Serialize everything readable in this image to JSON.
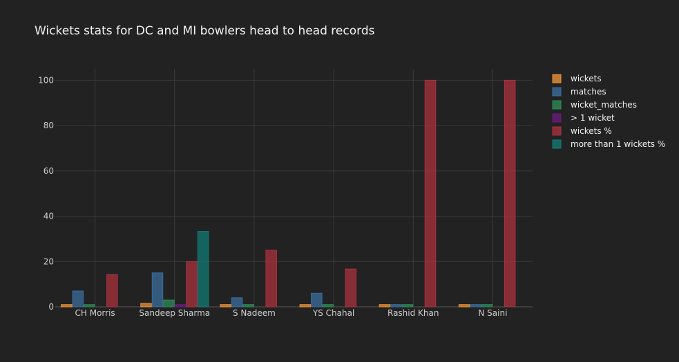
{
  "chart_data": {
    "type": "bar",
    "title": "Wickets stats for DC and MI bowlers head to head records",
    "xlabel": "",
    "ylabel": "",
    "categories": [
      "CH Morris",
      "Sandeep Sharma",
      "S Nadeem",
      "YS Chahal",
      "Rashid Khan",
      "N Saini"
    ],
    "ylim": [
      0,
      105
    ],
    "yticks": [
      0,
      20,
      40,
      60,
      80,
      100
    ],
    "grid": true,
    "legend_position": "top-right",
    "series": [
      {
        "name": "wickets",
        "color": "#e8923a",
        "values": [
          1,
          1.5,
          1,
          1,
          1,
          1
        ]
      },
      {
        "name": "matches",
        "color": "#3b6e9e",
        "values": [
          7,
          15,
          4,
          6,
          1,
          1
        ]
      },
      {
        "name": "wicket_matches",
        "color": "#2e8b57",
        "values": [
          1,
          3,
          1,
          1,
          1,
          1
        ]
      },
      {
        "name": "> 1 wicket",
        "color": "#6a1b7a",
        "values": [
          0,
          1,
          0,
          0,
          0,
          0
        ]
      },
      {
        "name": "wickets %",
        "color": "#a8323e",
        "values": [
          14.3,
          20,
          25,
          16.7,
          100,
          100
        ]
      },
      {
        "name": "more than 1 wickets %",
        "color": "#127a74",
        "values": [
          0,
          33.3,
          0,
          0,
          0,
          0
        ]
      }
    ]
  }
}
